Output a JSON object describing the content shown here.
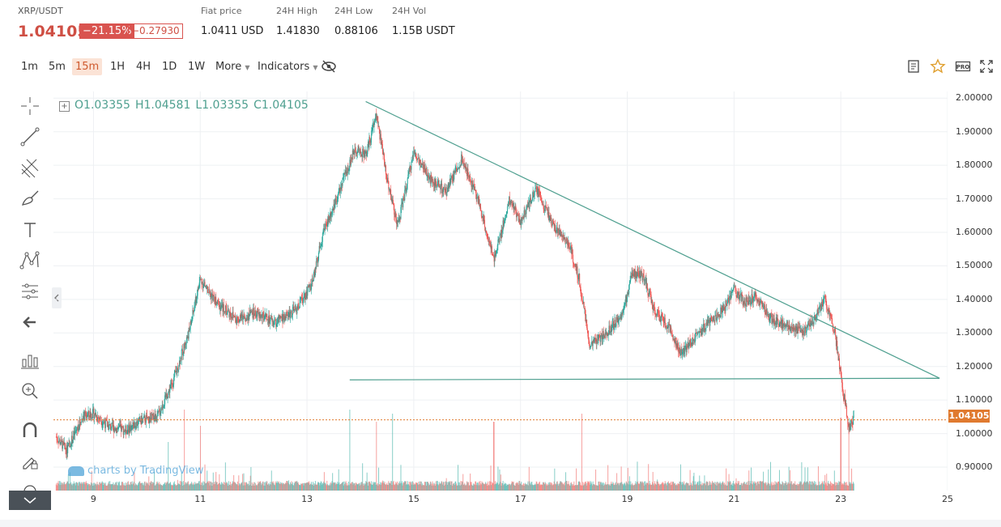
{
  "header": {
    "pair": "XRP/USDT",
    "last_price": "1.04105",
    "change_pct": "−21.15%",
    "change_abs": "−0.27930",
    "stats": [
      {
        "label": "Fiat price",
        "value": "1.0411 USD"
      },
      {
        "label": "24H High",
        "value": "1.41830"
      },
      {
        "label": "24H Low",
        "value": "0.88106"
      },
      {
        "label": "24H Vol",
        "value": "1.15B USDT"
      }
    ]
  },
  "toolbar": {
    "timeframes": [
      "1m",
      "5m",
      "15m",
      "1H",
      "4H",
      "1D",
      "1W"
    ],
    "active_timeframe": "15m",
    "more_label": "More",
    "indicators_label": "Indicators",
    "right_icons": [
      "notes-icon",
      "star-icon",
      "pro-icon",
      "fullscreen-icon"
    ],
    "pro_label": "PRO"
  },
  "left_tools": [
    "crosshair-icon",
    "trendline-icon",
    "pitchfork-icon",
    "brush-icon",
    "text-icon",
    "pattern-icon",
    "prediction-icon",
    "back-arrow-icon",
    "measure-icon",
    "zoom-icon",
    "magnet-icon",
    "lock-drawings-icon",
    "eye-icon"
  ],
  "watermark": "charts by TradingView",
  "chart_data": {
    "type": "candlestick",
    "title": "",
    "ohlc_legend": {
      "O": "1.03355",
      "H": "1.04581",
      "L": "1.03355",
      "C": "1.04105"
    },
    "x_ticks": [
      "9",
      "11",
      "13",
      "15",
      "17",
      "19",
      "21",
      "23",
      "25"
    ],
    "x_range_days": [
      8.25,
      25
    ],
    "y_ticks": [
      "2.00000",
      "1.90000",
      "1.80000",
      "1.70000",
      "1.60000",
      "1.50000",
      "1.40000",
      "1.30000",
      "1.20000",
      "1.10000",
      "1.00000",
      "0.90000"
    ],
    "y_range": [
      0.83,
      2.02
    ],
    "current_price_line": 1.04105,
    "current_price_label": "1.04105",
    "price_path": [
      {
        "day": 8.3,
        "price": 0.99
      },
      {
        "day": 8.5,
        "price": 0.95
      },
      {
        "day": 8.8,
        "price": 1.05
      },
      {
        "day": 9.0,
        "price": 1.06
      },
      {
        "day": 9.3,
        "price": 1.02
      },
      {
        "day": 9.6,
        "price": 1.01
      },
      {
        "day": 9.9,
        "price": 1.04
      },
      {
        "day": 10.2,
        "price": 1.05
      },
      {
        "day": 10.5,
        "price": 1.16
      },
      {
        "day": 10.8,
        "price": 1.31
      },
      {
        "day": 11.0,
        "price": 1.46
      },
      {
        "day": 11.3,
        "price": 1.39
      },
      {
        "day": 11.7,
        "price": 1.34
      },
      {
        "day": 12.0,
        "price": 1.36
      },
      {
        "day": 12.4,
        "price": 1.33
      },
      {
        "day": 12.8,
        "price": 1.37
      },
      {
        "day": 13.1,
        "price": 1.45
      },
      {
        "day": 13.3,
        "price": 1.6
      },
      {
        "day": 13.6,
        "price": 1.72
      },
      {
        "day": 13.9,
        "price": 1.85
      },
      {
        "day": 14.1,
        "price": 1.83
      },
      {
        "day": 14.3,
        "price": 1.95
      },
      {
        "day": 14.5,
        "price": 1.76
      },
      {
        "day": 14.7,
        "price": 1.62
      },
      {
        "day": 15.0,
        "price": 1.84
      },
      {
        "day": 15.3,
        "price": 1.76
      },
      {
        "day": 15.6,
        "price": 1.72
      },
      {
        "day": 15.9,
        "price": 1.82
      },
      {
        "day": 16.2,
        "price": 1.7
      },
      {
        "day": 16.5,
        "price": 1.52
      },
      {
        "day": 16.8,
        "price": 1.7
      },
      {
        "day": 17.0,
        "price": 1.63
      },
      {
        "day": 17.3,
        "price": 1.73
      },
      {
        "day": 17.6,
        "price": 1.62
      },
      {
        "day": 17.9,
        "price": 1.57
      },
      {
        "day": 18.1,
        "price": 1.46
      },
      {
        "day": 18.3,
        "price": 1.26
      },
      {
        "day": 18.6,
        "price": 1.3
      },
      {
        "day": 18.9,
        "price": 1.35
      },
      {
        "day": 19.1,
        "price": 1.48
      },
      {
        "day": 19.3,
        "price": 1.47
      },
      {
        "day": 19.5,
        "price": 1.37
      },
      {
        "day": 19.8,
        "price": 1.31
      },
      {
        "day": 20.0,
        "price": 1.24
      },
      {
        "day": 20.2,
        "price": 1.27
      },
      {
        "day": 20.5,
        "price": 1.33
      },
      {
        "day": 20.8,
        "price": 1.37
      },
      {
        "day": 21.0,
        "price": 1.43
      },
      {
        "day": 21.2,
        "price": 1.39
      },
      {
        "day": 21.4,
        "price": 1.41
      },
      {
        "day": 21.7,
        "price": 1.34
      },
      {
        "day": 22.0,
        "price": 1.32
      },
      {
        "day": 22.3,
        "price": 1.3
      },
      {
        "day": 22.5,
        "price": 1.34
      },
      {
        "day": 22.7,
        "price": 1.4
      },
      {
        "day": 22.9,
        "price": 1.29
      },
      {
        "day": 23.0,
        "price": 1.17
      },
      {
        "day": 23.15,
        "price": 1.02
      },
      {
        "day": 23.25,
        "price": 1.04
      }
    ],
    "trendlines": [
      {
        "name": "descending-resistance",
        "from": {
          "day": 14.1,
          "price": 1.99
        },
        "to": {
          "day": 24.85,
          "price": 1.165
        }
      },
      {
        "name": "horizontal-support",
        "from": {
          "day": 13.8,
          "price": 1.16
        },
        "to": {
          "day": 24.85,
          "price": 1.165
        }
      }
    ],
    "volume_spikes": [
      {
        "day": 10.4,
        "rel": 0.6
      },
      {
        "day": 10.7,
        "rel": 1.0
      },
      {
        "day": 11.0,
        "rel": 0.8
      },
      {
        "day": 13.8,
        "rel": 1.0
      },
      {
        "day": 14.3,
        "rel": 0.85
      },
      {
        "day": 14.6,
        "rel": 0.95
      },
      {
        "day": 16.5,
        "rel": 0.85
      },
      {
        "day": 18.15,
        "rel": 0.95
      },
      {
        "day": 23.0,
        "rel": 0.9
      },
      {
        "day": 23.15,
        "rel": 0.85
      }
    ],
    "colors": {
      "up": "#26a69a",
      "down": "#ef5350",
      "trendline": "#4e9f8f",
      "price_line": "#e07a2f",
      "grid": "#eef0f3"
    }
  }
}
